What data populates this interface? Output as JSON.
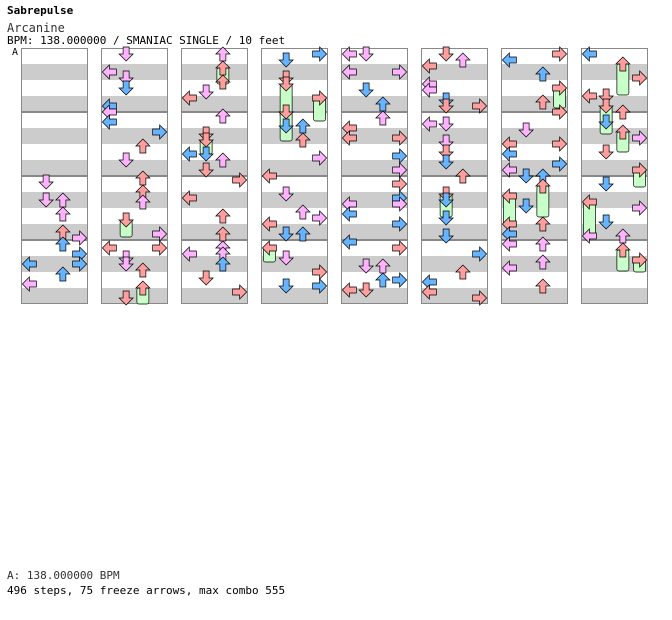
{
  "song_title": "Sabrepulse",
  "artist": "Arcanine",
  "header_info": "BPM: 138.000000 / SMANIAC SINGLE / 10 feet",
  "section_label": "A",
  "footer_bpm": "A: 138.000000 BPM",
  "footer_stats": "496 steps, 75 freeze arrows, max combo 555",
  "colors": {
    "page_bg": "#ffffff",
    "row_dark": "#cccccc",
    "row_light": "#ffffff",
    "arrow_blue": "#66b3ff",
    "arrow_red": "#ff9e9e",
    "arrow_pink": "#ffb3ff",
    "freeze_green": "#c8ffc8",
    "arrow_outline": "#000000"
  },
  "chart_data": {
    "type": "step-chart",
    "mode": "SMANIAC SINGLE",
    "difficulty_feet": 10,
    "bpm": 138.0,
    "columns": 8,
    "measures_per_column": 4,
    "lanes": [
      "left",
      "down",
      "up",
      "right"
    ],
    "steps": 496,
    "freeze_arrows": 75,
    "max_combo": 555,
    "arrow_types": [
      "blue-8th",
      "red-4th",
      "pink-16th",
      "green-freeze"
    ]
  }
}
